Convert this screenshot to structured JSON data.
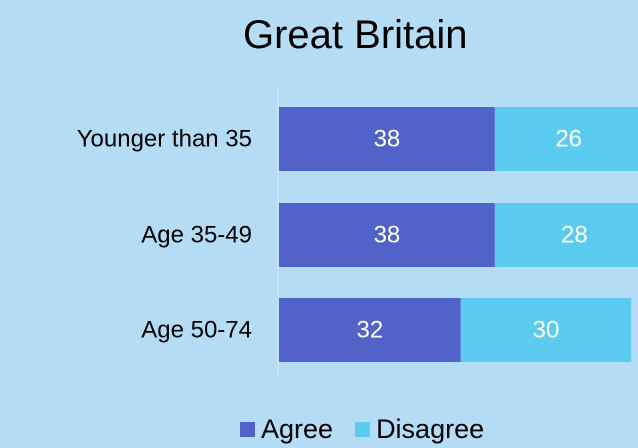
{
  "chart_data": {
    "type": "bar",
    "orientation": "horizontal",
    "stacked": true,
    "title": "Great Britain",
    "categories": [
      "Younger than 35",
      "Age 35-49",
      "Age 50-74"
    ],
    "series": [
      {
        "name": "Agree",
        "values": [
          38,
          38,
          32
        ],
        "color": "#5163c8"
      },
      {
        "name": "Disagree",
        "values": [
          26,
          28,
          30
        ],
        "color": "#5ccbf0"
      }
    ],
    "legend_position": "bottom",
    "grid": false
  }
}
